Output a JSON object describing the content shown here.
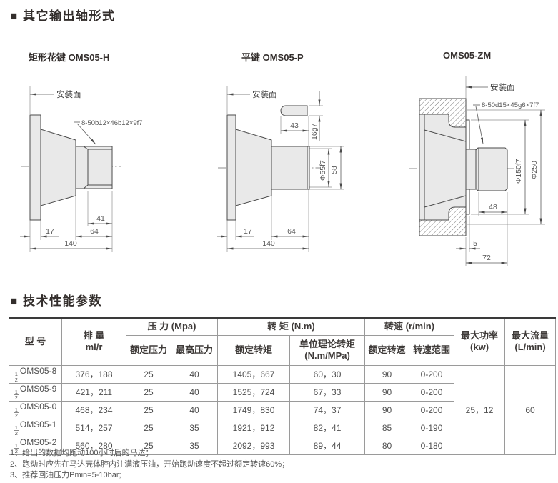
{
  "sections": {
    "shaft_forms_title": "■ 其它输出轴形式",
    "performance_title": "■ 技术性能参数"
  },
  "drawings": {
    "d1": {
      "label": "矩形花键 OMS05-H",
      "mount": "安装面",
      "note": "8-50b12×46b12×9f7",
      "dim41": "41",
      "dim17": "17",
      "dim64": "64",
      "dim140": "140"
    },
    "d2": {
      "label": "平键 OMS05-P",
      "mount": "安装面",
      "dim43": "43",
      "dim16": "16g7",
      "dia55": "Φ55f7",
      "dim58": "58",
      "dim17": "17",
      "dim64": "64",
      "dim140": "140"
    },
    "d3": {
      "label": "OMS05-ZM",
      "mount": "安装面",
      "note": "8-50d15×45g6×7f7",
      "dim48": "48",
      "dia150": "Φ150f7",
      "dia250": "Φ250",
      "dim5": "5",
      "dim72": "72"
    }
  },
  "table": {
    "headers": {
      "model": "型  号",
      "displacement": [
        "排 量",
        "ml/r"
      ],
      "pressure": "压 力 (Mpa)",
      "rated_pressure": "额定压力",
      "max_pressure": "最高压力",
      "torque": "转 矩 (N.m)",
      "rated_torque": "额定转矩",
      "unit_torque": [
        "单位理论转矩",
        "(N.m/MPa)"
      ],
      "speed": "转速 (r/min)",
      "rated_speed": "额定转速",
      "speed_range": "转速范围",
      "max_power": [
        "最大功率",
        "(kw)"
      ],
      "max_flow": [
        "最大流量",
        "(L/min)"
      ]
    },
    "rows": [
      {
        "frac_num": "1",
        "frac_den": "2",
        "model": "OMS05-8",
        "displacement": "376，188",
        "rated_pressure": "25",
        "max_pressure": "40",
        "rated_torque": "1405，667",
        "unit_torque": "60，30",
        "rated_speed": "90",
        "speed_range": "0-200"
      },
      {
        "frac_num": "1",
        "frac_den": "2",
        "model": "OMS05-9",
        "displacement": "421，211",
        "rated_pressure": "25",
        "max_pressure": "40",
        "rated_torque": "1525，724",
        "unit_torque": "67，33",
        "rated_speed": "90",
        "speed_range": "0-200"
      },
      {
        "frac_num": "1",
        "frac_den": "2",
        "model": "OMS05-0",
        "displacement": "468，234",
        "rated_pressure": "25",
        "max_pressure": "40",
        "rated_torque": "1749，830",
        "unit_torque": "74，37",
        "rated_speed": "90",
        "speed_range": "0-200"
      },
      {
        "frac_num": "1",
        "frac_den": "2",
        "model": "OMS05-1",
        "displacement": "514，257",
        "rated_pressure": "25",
        "max_pressure": "35",
        "rated_torque": "1921，912",
        "unit_torque": "82，41",
        "rated_speed": "85",
        "speed_range": "0-190"
      },
      {
        "frac_num": "1",
        "frac_den": "2",
        "model": "OMS05-2",
        "displacement": "560，280",
        "rated_pressure": "25",
        "max_pressure": "35",
        "rated_torque": "2092，993",
        "unit_torque": "89，44",
        "rated_speed": "80",
        "speed_range": "0-180"
      }
    ],
    "merged": {
      "max_power": "25，12",
      "max_flow": "60"
    }
  },
  "footnotes": [
    "1、给出的数据均跑动100小时后的马达；",
    "2、跑动时应先在马达壳体腔内注满液压油，开始跑动速度不超过额定转速60%；",
    "3、推荐回油压力Pmin=5-10bar;"
  ],
  "colors": {
    "fill_gray": "#e9e9e9",
    "line": "#4a4a4a",
    "text_dark": "#332e2c",
    "text_dim": "#555555"
  }
}
